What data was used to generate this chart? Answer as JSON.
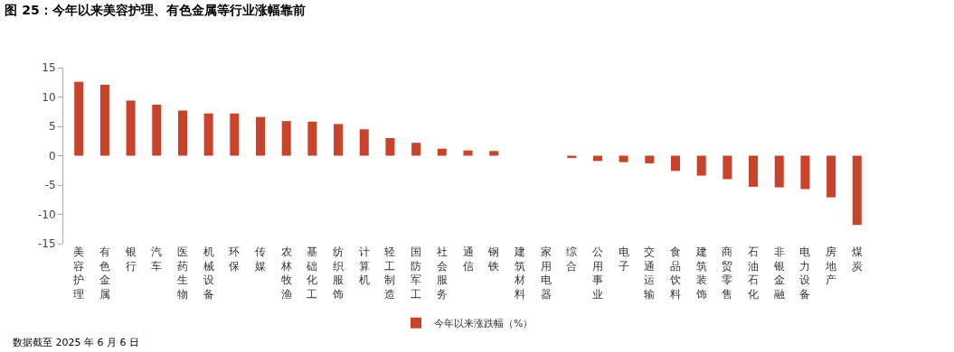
{
  "chart_data": {
    "type": "bar",
    "title": "图 25：今年以来美容护理、有色金属等行业涨幅靠前",
    "categories": [
      "美容护理",
      "有色金属",
      "银行",
      "汽车",
      "医药生物",
      "机械设备",
      "环保",
      "传媒",
      "农林牧渔",
      "基础化工",
      "纺织服饰",
      "计算机",
      "轻工制造",
      "国防军工",
      "社会服务",
      "通信",
      "钢铁",
      "建筑材料",
      "家用电器",
      "综合",
      "公用事业",
      "电子",
      "交通运输",
      "食品饮料",
      "建筑装饰",
      "商贸零售",
      "石油石化",
      "非银金融",
      "电力设备",
      "房地产",
      "煤炭"
    ],
    "series": [
      {
        "name": "今年以来涨跌幅（%）",
        "color": "#c8432a",
        "values": [
          12.6,
          12.1,
          9.4,
          8.7,
          7.7,
          7.2,
          7.2,
          6.6,
          5.9,
          5.8,
          5.4,
          4.5,
          3.0,
          2.2,
          1.2,
          0.9,
          0.8,
          null,
          null,
          -0.4,
          -0.9,
          -1.1,
          -1.3,
          -2.6,
          -3.4,
          -4.0,
          -5.3,
          -5.4,
          -5.7,
          -7.1,
          -11.8
        ]
      }
    ],
    "ylim": [
      -15,
      15
    ],
    "yticks": [
      -15,
      -10,
      -5,
      0,
      5,
      10,
      15
    ],
    "grid": false,
    "legend": "bottom",
    "annotations": [
      "数据截至 2025 年 6 月 6 日"
    ]
  }
}
